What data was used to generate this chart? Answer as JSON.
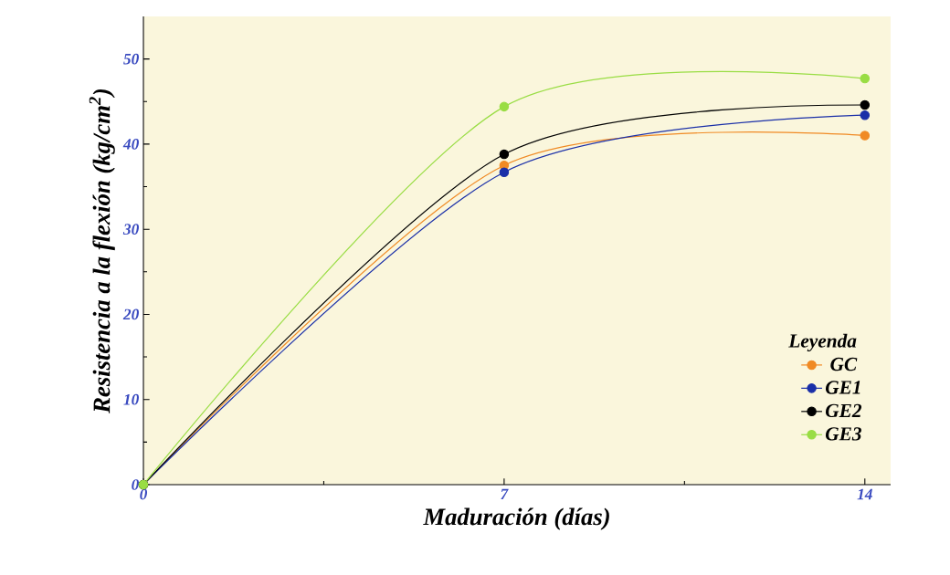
{
  "chart_data": {
    "type": "line",
    "xlabel": "Maduración (días)",
    "ylabel": "Resistencia a la flexión (kg/cm$^{2}$)",
    "legend_title": "Leyenda",
    "x": [
      0,
      7,
      14
    ],
    "xlim": [
      0,
      14.5
    ],
    "xticks": [
      0,
      7,
      14
    ],
    "ylim": [
      0,
      55
    ],
    "yticks": [
      0,
      10,
      20,
      30,
      40,
      50
    ],
    "series": [
      {
        "name": "GC",
        "color": "#f08a24",
        "values": [
          0,
          37.5,
          41.0
        ]
      },
      {
        "name": "GE1",
        "color": "#1a2fa8",
        "values": [
          0,
          36.7,
          43.4
        ]
      },
      {
        "name": "GE2",
        "color": "#000000",
        "values": [
          0,
          38.8,
          44.6
        ]
      },
      {
        "name": "GE3",
        "color": "#99dd44",
        "values": [
          0,
          44.4,
          47.7
        ]
      }
    ],
    "marker": "circle",
    "line_style": "solid",
    "grid": false,
    "legend": "bottom right"
  }
}
